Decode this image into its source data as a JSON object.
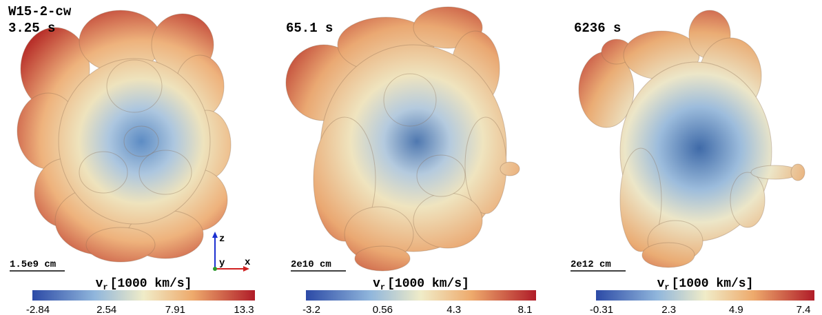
{
  "panels": [
    {
      "labels": [
        "W15-2-cw",
        "3.25 s"
      ],
      "scale_bar": "1.5e9 cm",
      "colorbar": {
        "symbol": "v",
        "subscript": "r",
        "unit": "[1000 km/s]",
        "ticks": [
          "-2.84",
          "2.54",
          "7.91",
          "13.3"
        ]
      }
    },
    {
      "labels": [
        "65.1 s"
      ],
      "scale_bar": "2e10 cm",
      "colorbar": {
        "symbol": "v",
        "subscript": "r",
        "unit": "[1000 km/s]",
        "ticks": [
          "-3.2",
          "0.56",
          "4.3",
          "8.1"
        ]
      }
    },
    {
      "labels": [
        "6236 s"
      ],
      "scale_bar": "2e12 cm",
      "colorbar": {
        "symbol": "v",
        "subscript": "r",
        "unit": "[1000 km/s]",
        "ticks": [
          "-0.31",
          "2.3",
          "4.9",
          "7.4"
        ]
      }
    }
  ],
  "axes_triad": {
    "z": "z",
    "y": "y",
    "x": "x"
  }
}
